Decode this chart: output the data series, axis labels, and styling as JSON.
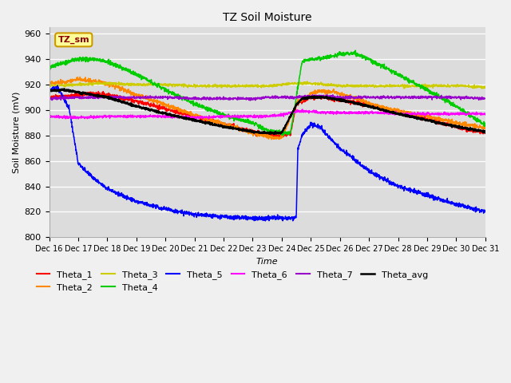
{
  "title": "TZ Soil Moisture",
  "xlabel": "Time",
  "ylabel": "Soil Moisture (mV)",
  "ylim": [
    800,
    965
  ],
  "yticks": [
    800,
    820,
    840,
    860,
    880,
    900,
    920,
    940,
    960
  ],
  "bg_color": "#dcdcdc",
  "fig_color": "#f0f0f0",
  "legend_box_color": "#ffff99",
  "legend_box_edge": "#cc9900",
  "legend_box_text": "TZ_sm",
  "colors": {
    "Theta_1": "#ff0000",
    "Theta_2": "#ff8800",
    "Theta_3": "#cccc00",
    "Theta_4": "#00cc00",
    "Theta_5": "#0000ff",
    "Theta_6": "#ff00ff",
    "Theta_7": "#9900cc",
    "Theta_avg": "#000000"
  },
  "x_labels": [
    "Dec 16",
    "Dec 17",
    "Dec 18",
    "Dec 19",
    "Dec 20",
    "Dec 21",
    "Dec 22",
    "Dec 23",
    "Dec 24",
    "Dec 25",
    "Dec 26",
    "Dec 27",
    "Dec 28",
    "Dec 29",
    "Dec 30",
    "Dec 31"
  ],
  "legend_order": [
    "Theta_1",
    "Theta_2",
    "Theta_3",
    "Theta_4",
    "Theta_5",
    "Theta_6",
    "Theta_7",
    "Theta_avg"
  ],
  "legend_ncol": 6
}
